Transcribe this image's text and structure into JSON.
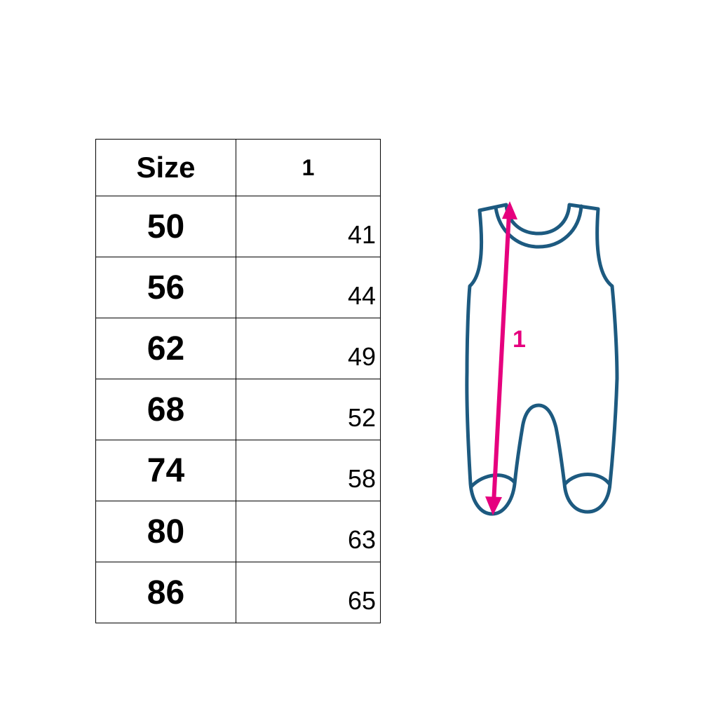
{
  "table": {
    "headers": [
      "Size",
      "1"
    ],
    "rows": [
      {
        "size": "50",
        "value": "41"
      },
      {
        "size": "56",
        "value": "44"
      },
      {
        "size": "62",
        "value": "49"
      },
      {
        "size": "68",
        "value": "52"
      },
      {
        "size": "74",
        "value": "58"
      },
      {
        "size": "80",
        "value": "63"
      },
      {
        "size": "86",
        "value": "65"
      }
    ]
  },
  "diagram": {
    "measure_label": "1",
    "outline_color": "#1d5a80",
    "arrow_color": "#e6007e"
  }
}
